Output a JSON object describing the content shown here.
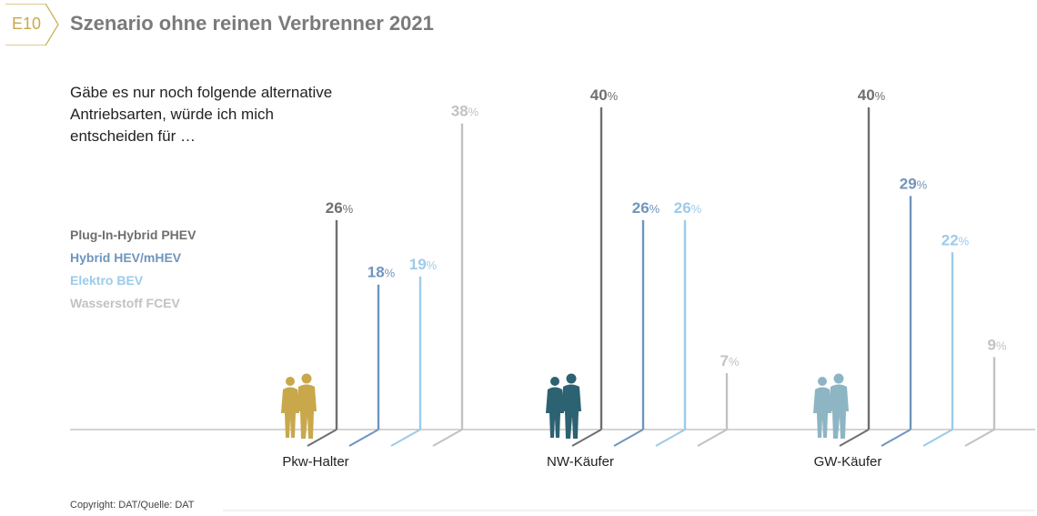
{
  "header": {
    "badge": "E10",
    "title": "Szenario ohne reinen Verbrenner 2021"
  },
  "question": "Gäbe es nur noch folgende alternative Antriebsarten, würde ich mich entscheiden für …",
  "legend": [
    {
      "prefix": "Plug-In-Hybrid",
      "code": "PHEV",
      "color": "#6f6f6f"
    },
    {
      "prefix": "Hybrid",
      "code": "HEV/mHEV",
      "color": "#6f95bd"
    },
    {
      "prefix": "Elektro",
      "code": "BEV",
      "color": "#9ccbea"
    },
    {
      "prefix": "Wasserstoff",
      "code": "FCEV",
      "color": "#c2c2c2"
    }
  ],
  "footer": {
    "copyright": "Copyright: DAT/Quelle: DAT"
  },
  "chart_data": {
    "type": "bar",
    "categories": [
      "Pkw-Halter",
      "NW-Käufer",
      "GW-Käufer"
    ],
    "category_colors": [
      "#c8a84b",
      "#2c6272",
      "#8db5c4"
    ],
    "unit": "%",
    "ylim": [
      0,
      40
    ],
    "series": [
      {
        "name": "Plug-In-Hybrid PHEV",
        "values": [
          26,
          40,
          40
        ],
        "color": "#6f6f6f"
      },
      {
        "name": "Hybrid HEV/mHEV",
        "values": [
          18,
          26,
          29
        ],
        "color": "#6f95bd"
      },
      {
        "name": "Elektro BEV",
        "values": [
          19,
          26,
          22
        ],
        "color": "#9ccbea"
      },
      {
        "name": "Wasserstoff FCEV",
        "values": [
          38,
          7,
          9
        ],
        "color": "#c2c2c2"
      }
    ]
  }
}
